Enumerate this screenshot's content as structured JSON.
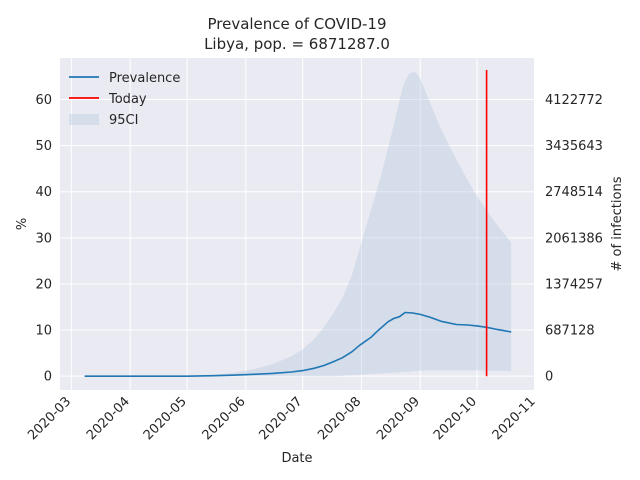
{
  "chart_data": {
    "type": "line",
    "title_line1": "Prevalence of COVID-19",
    "title_line2": "Libya, pop. = 6871287.0",
    "xlabel": "Date",
    "ylabel": "%",
    "ylabel_right": "# of infections",
    "xlim": [
      "2020-02-24",
      "2020-10-31"
    ],
    "ylim": [
      -3,
      69
    ],
    "grid": true,
    "legend_position": "top-left",
    "x_ticks": [
      "2020-03",
      "2020-04",
      "2020-05",
      "2020-06",
      "2020-07",
      "2020-08",
      "2020-09",
      "2020-10",
      "2020-11"
    ],
    "y_ticks": [
      0,
      10,
      20,
      30,
      40,
      50,
      60
    ],
    "y_ticks_right": [
      {
        "value": 0,
        "label": "0"
      },
      {
        "value": 10,
        "label": "687128"
      },
      {
        "value": 20,
        "label": "1374257"
      },
      {
        "value": 30,
        "label": "2061386"
      },
      {
        "value": 40,
        "label": "2748514"
      },
      {
        "value": 50,
        "label": "3435643"
      },
      {
        "value": 60,
        "label": "4122772"
      }
    ],
    "series": [
      {
        "name": "Prevalence",
        "color": "#1f77b4",
        "x": [
          "2020-03-08",
          "2020-04-01",
          "2020-05-01",
          "2020-05-15",
          "2020-05-25",
          "2020-06-05",
          "2020-06-15",
          "2020-06-25",
          "2020-07-01",
          "2020-07-07",
          "2020-07-12",
          "2020-07-17",
          "2020-07-22",
          "2020-07-27",
          "2020-07-31",
          "2020-08-06",
          "2020-08-10",
          "2020-08-15",
          "2020-08-18",
          "2020-08-21",
          "2020-08-24",
          "2020-08-28",
          "2020-09-01",
          "2020-09-06",
          "2020-09-12",
          "2020-09-20",
          "2020-09-26",
          "2020-10-01",
          "2020-10-06",
          "2020-10-12",
          "2020-10-19"
        ],
        "values": [
          0,
          0,
          0,
          0.1,
          0.2,
          0.4,
          0.6,
          0.9,
          1.2,
          1.7,
          2.3,
          3.1,
          4.0,
          5.3,
          6.7,
          8.4,
          10.0,
          11.8,
          12.5,
          12.9,
          13.8,
          13.7,
          13.4,
          12.8,
          11.9,
          11.2,
          11.1,
          10.9,
          10.6,
          10.1,
          9.6
        ]
      },
      {
        "name": "Today",
        "color": "#ff0000",
        "x": [
          "2020-10-06",
          "2020-10-06"
        ],
        "values": [
          0,
          66.4
        ]
      }
    ],
    "band": {
      "name": "95CI",
      "color": "#b0c4de",
      "x": [
        "2020-03-08",
        "2020-04-01",
        "2020-05-01",
        "2020-05-15",
        "2020-05-25",
        "2020-06-05",
        "2020-06-15",
        "2020-06-25",
        "2020-07-01",
        "2020-07-07",
        "2020-07-12",
        "2020-07-17",
        "2020-07-22",
        "2020-07-27",
        "2020-08-01",
        "2020-08-06",
        "2020-08-11",
        "2020-08-16",
        "2020-08-20",
        "2020-08-23",
        "2020-08-26",
        "2020-08-29",
        "2020-09-01",
        "2020-09-06",
        "2020-09-12",
        "2020-09-20",
        "2020-09-26",
        "2020-10-01",
        "2020-10-06",
        "2020-10-12",
        "2020-10-19"
      ],
      "lower": [
        0,
        0,
        0,
        0,
        0,
        0,
        0,
        0,
        0,
        0,
        0,
        0,
        0.1,
        0.2,
        0.3,
        0.5,
        0.6,
        0.7,
        0.8,
        0.9,
        1.0,
        1.1,
        1.2,
        1.3,
        1.3,
        1.3,
        1.3,
        1.3,
        1.2,
        1.2,
        1.1
      ],
      "upper": [
        0,
        0,
        0.1,
        0.3,
        0.7,
        1.5,
        2.6,
        4.3,
        5.8,
        8.0,
        10.5,
        13.5,
        17.0,
        22.0,
        29.0,
        36.0,
        43.0,
        51.0,
        58.0,
        63.0,
        65.6,
        66.1,
        64.5,
        59.5,
        53.5,
        47.0,
        42.5,
        39.0,
        36.0,
        32.5,
        29.0
      ]
    }
  }
}
